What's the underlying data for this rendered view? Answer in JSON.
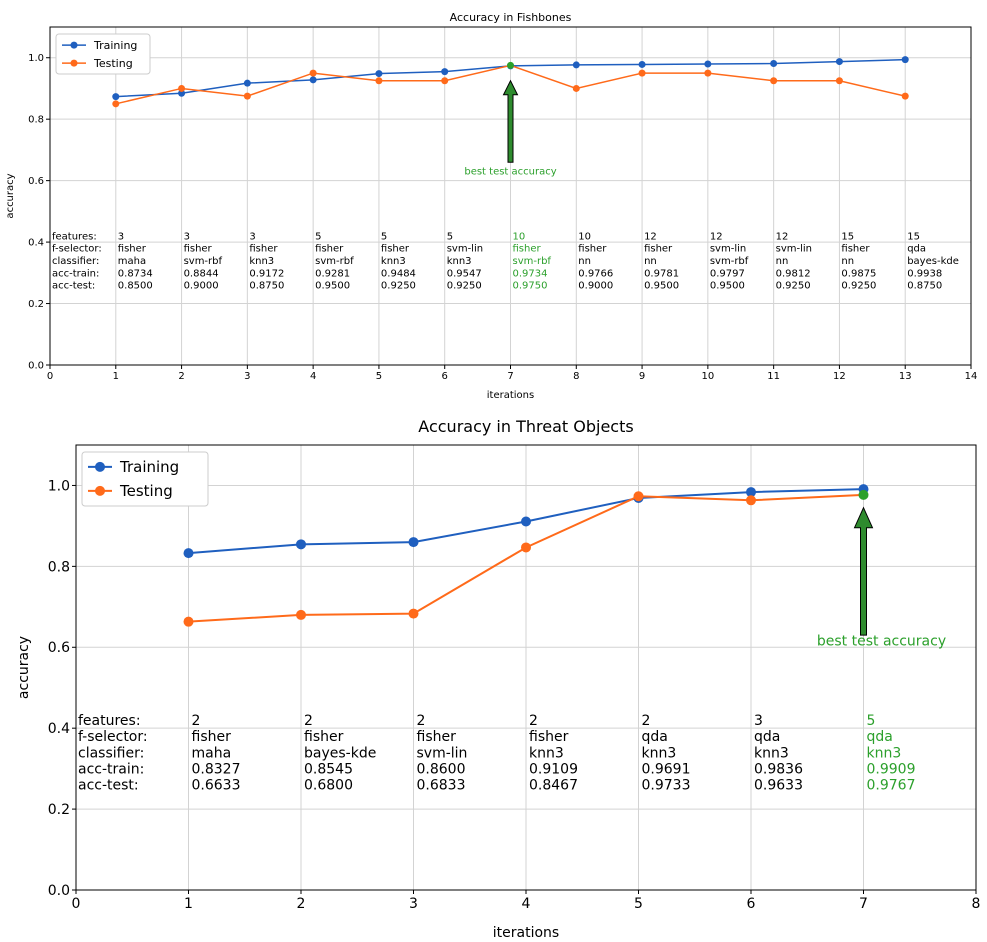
{
  "colors": {
    "training": "#1f5fbf",
    "testing": "#ff6a1a",
    "best": "#2ca02c",
    "arrow_fill": "#2e8b2e",
    "grid": "#d3d3d3",
    "axis": "#000000",
    "annotation_text": "#000000"
  },
  "chart_data": [
    {
      "type": "line",
      "title": "Accuracy in Fishbones",
      "xlabel": "iterations",
      "ylabel": "accuracy",
      "xlim": [
        0,
        14
      ],
      "ylim": [
        0,
        1.1
      ],
      "xticks": [
        0,
        1,
        2,
        3,
        4,
        5,
        6,
        7,
        8,
        9,
        10,
        11,
        12,
        13,
        14
      ],
      "yticks": [
        0.0,
        0.2,
        0.4,
        0.6,
        0.8,
        1.0
      ],
      "ytick_labels": [
        "0.0",
        "0.2",
        "0.4",
        "0.6",
        "0.8",
        "1.0"
      ],
      "grid": true,
      "legend_position": "top-left",
      "x": [
        1,
        2,
        3,
        4,
        5,
        6,
        7,
        8,
        9,
        10,
        11,
        12,
        13
      ],
      "series": [
        {
          "name": "Training",
          "values": [
            0.8734,
            0.8844,
            0.9172,
            0.9281,
            0.9484,
            0.9547,
            0.9734,
            0.9766,
            0.9781,
            0.9797,
            0.9812,
            0.9875,
            0.9938
          ]
        },
        {
          "name": "Testing",
          "values": [
            0.85,
            0.9,
            0.875,
            0.95,
            0.925,
            0.925,
            0.975,
            0.9,
            0.95,
            0.95,
            0.925,
            0.925,
            0.875
          ]
        }
      ],
      "best_index": 6,
      "best_label": "best test accuracy",
      "table": {
        "row_labels": [
          "features:",
          "f-selector:",
          "classifier:",
          "acc-train:",
          "acc-test:"
        ],
        "rows_y": [
          0.42,
          0.38,
          0.34,
          0.3,
          0.26
        ],
        "columns": [
          [
            "3",
            "fisher",
            "maha",
            "0.8734",
            "0.8500"
          ],
          [
            "3",
            "fisher",
            "svm-rbf",
            "0.8844",
            "0.9000"
          ],
          [
            "3",
            "fisher",
            "knn3",
            "0.9172",
            "0.8750"
          ],
          [
            "5",
            "fisher",
            "svm-rbf",
            "0.9281",
            "0.9500"
          ],
          [
            "5",
            "fisher",
            "knn3",
            "0.9484",
            "0.9250"
          ],
          [
            "5",
            "svm-lin",
            "knn3",
            "0.9547",
            "0.9250"
          ],
          [
            "10",
            "fisher",
            "svm-rbf",
            "0.9734",
            "0.9750"
          ],
          [
            "10",
            "fisher",
            "nn",
            "0.9766",
            "0.9000"
          ],
          [
            "12",
            "fisher",
            "nn",
            "0.9781",
            "0.9500"
          ],
          [
            "12",
            "svm-lin",
            "svm-rbf",
            "0.9797",
            "0.9500"
          ],
          [
            "12",
            "svm-lin",
            "nn",
            "0.9812",
            "0.9250"
          ],
          [
            "15",
            "fisher",
            "nn",
            "0.9875",
            "0.9250"
          ],
          [
            "15",
            "qda",
            "bayes-kde",
            "0.9938",
            "0.8750"
          ]
        ]
      }
    },
    {
      "type": "line",
      "title": "Accuracy in Threat Objects",
      "xlabel": "iterations",
      "ylabel": "accuracy",
      "xlim": [
        0,
        8
      ],
      "ylim": [
        0,
        1.1
      ],
      "xticks": [
        0,
        1,
        2,
        3,
        4,
        5,
        6,
        7,
        8
      ],
      "yticks": [
        0.0,
        0.2,
        0.4,
        0.6,
        0.8,
        1.0
      ],
      "ytick_labels": [
        "0.0",
        "0.2",
        "0.4",
        "0.6",
        "0.8",
        "1.0"
      ],
      "grid": true,
      "legend_position": "top-left",
      "x": [
        1,
        2,
        3,
        4,
        5,
        6,
        7
      ],
      "series": [
        {
          "name": "Training",
          "values": [
            0.8327,
            0.8545,
            0.86,
            0.9109,
            0.9691,
            0.9836,
            0.9909
          ]
        },
        {
          "name": "Testing",
          "values": [
            0.6633,
            0.68,
            0.6833,
            0.8467,
            0.9733,
            0.9633,
            0.9767
          ]
        }
      ],
      "best_index": 6,
      "best_label": "best test accuracy",
      "table": {
        "row_labels": [
          "features:",
          "f-selector:",
          "classifier:",
          "acc-train:",
          "acc-test:"
        ],
        "rows_y": [
          0.42,
          0.38,
          0.34,
          0.3,
          0.26
        ],
        "columns": [
          [
            "2",
            "fisher",
            "maha",
            "0.8327",
            "0.6633"
          ],
          [
            "2",
            "fisher",
            "bayes-kde",
            "0.8545",
            "0.6800"
          ],
          [
            "2",
            "fisher",
            "svm-lin",
            "0.8600",
            "0.6833"
          ],
          [
            "2",
            "fisher",
            "knn3",
            "0.9109",
            "0.8467"
          ],
          [
            "2",
            "qda",
            "knn3",
            "0.9691",
            "0.9733"
          ],
          [
            "3",
            "qda",
            "knn3",
            "0.9836",
            "0.9633"
          ],
          [
            "5",
            "qda",
            "knn3",
            "0.9909",
            "0.9767"
          ]
        ]
      }
    }
  ]
}
